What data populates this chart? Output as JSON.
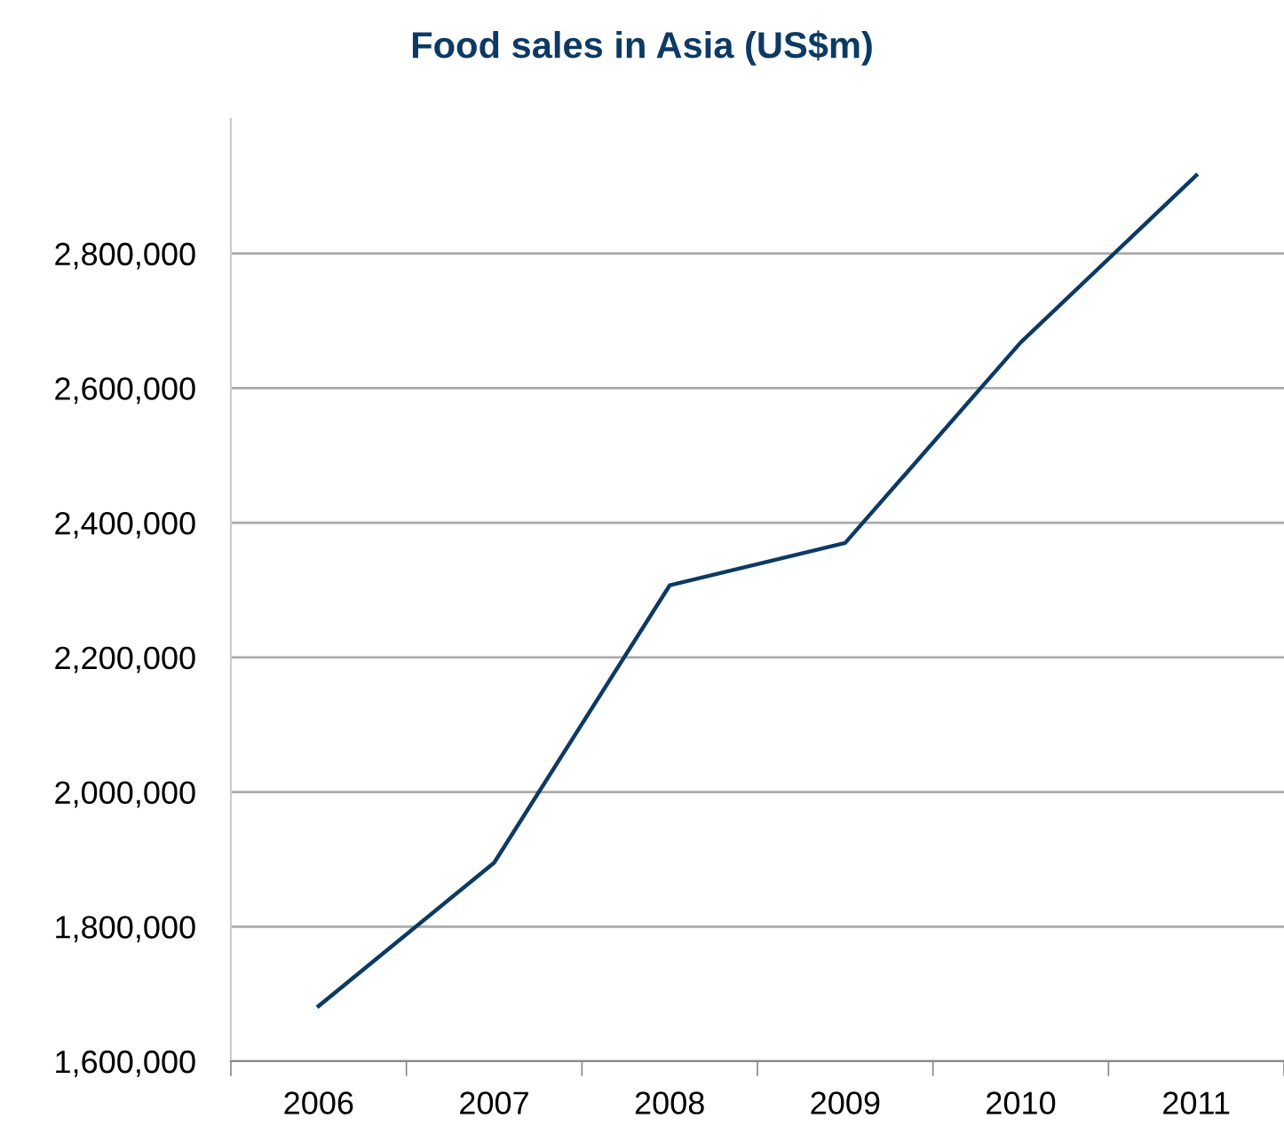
{
  "chart_data": {
    "type": "line",
    "title": "Food sales in Asia (US$m)",
    "categories": [
      "2006",
      "2007",
      "2008",
      "2009",
      "2010",
      "2011"
    ],
    "series": [
      {
        "color": "#0d3a63",
        "values": [
          1682000,
          1895000,
          2307000,
          2370000,
          2668000,
          2916000
        ]
      }
    ],
    "ylim": [
      1600000,
      3000000
    ],
    "yticks": [
      {
        "value": 1600000,
        "label": "1,600,000"
      },
      {
        "value": 1800000,
        "label": "1,800,000"
      },
      {
        "value": 2000000,
        "label": "2,000,000"
      },
      {
        "value": 2200000,
        "label": "2,200,000"
      },
      {
        "value": 2400000,
        "label": "2,400,000"
      },
      {
        "value": 2600000,
        "label": "2,600,000"
      },
      {
        "value": 2800000,
        "label": "2,800,000"
      }
    ],
    "grid": "y",
    "legend": false,
    "marker": "none",
    "line_style": "solid"
  }
}
